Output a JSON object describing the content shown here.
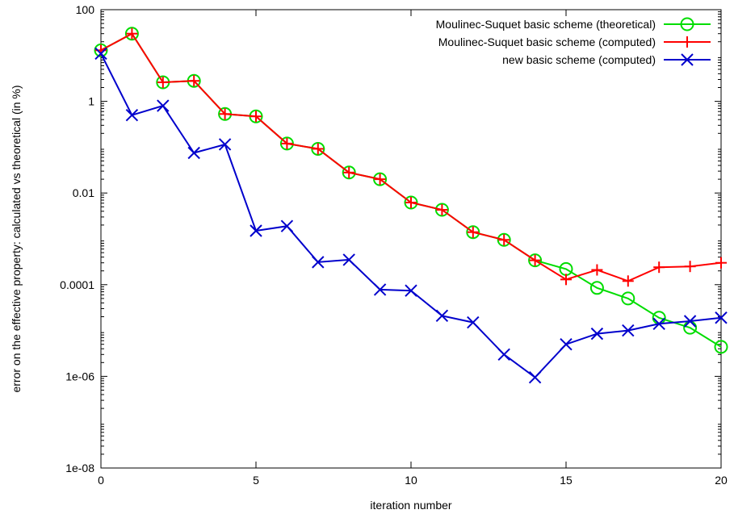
{
  "chart_data": {
    "type": "line",
    "xlabel": "iteration number",
    "ylabel": "error on the effective property: calculated vs theoretical (in %)",
    "xlim": [
      0,
      20
    ],
    "ylim": [
      1e-08,
      100
    ],
    "yscale": "log",
    "x_ticks": [
      0,
      5,
      10,
      15,
      20
    ],
    "x_tick_labels": [
      "0",
      "5",
      "10",
      "15",
      "20"
    ],
    "y_ticks": [
      1e-08,
      1e-06,
      0.0001,
      0.01,
      1,
      100
    ],
    "y_tick_labels": [
      "1e-08",
      "1e-06",
      "0.0001",
      "0.01",
      "1",
      "100"
    ],
    "grid": false,
    "legend_position": "top-right",
    "x": [
      0,
      1,
      2,
      3,
      4,
      5,
      6,
      7,
      8,
      9,
      10,
      11,
      12,
      13,
      14,
      15,
      16,
      17,
      18,
      19,
      20
    ],
    "series": [
      {
        "name": "Moulinec-Suquet basic scheme (theoretical)",
        "color": "#00dd00",
        "marker": "circle",
        "values": [
          13,
          30,
          2.6,
          2.8,
          0.53,
          0.47,
          0.12,
          0.092,
          0.028,
          0.02,
          0.0062,
          0.0043,
          0.0014,
          0.00095,
          0.00034,
          0.00022,
          8.5e-05,
          5e-05,
          1.9e-05,
          1.15e-05,
          4.4e-06
        ]
      },
      {
        "name": "Moulinec-Suquet basic scheme (computed)",
        "color": "#ff0000",
        "marker": "plus",
        "values": [
          13,
          30,
          2.6,
          2.8,
          0.53,
          0.47,
          0.12,
          0.092,
          0.028,
          0.02,
          0.0062,
          0.0043,
          0.0014,
          0.00095,
          0.00034,
          0.00013,
          0.00021,
          0.00012,
          0.00024,
          0.00025,
          0.0003
        ]
      },
      {
        "name": "new basic scheme (computed)",
        "color": "#0000cc",
        "marker": "cross",
        "values": [
          11,
          0.5,
          0.8,
          0.075,
          0.115,
          0.0015,
          0.0019,
          0.00031,
          0.00035,
          7.8e-05,
          7.4e-05,
          2.1e-05,
          1.5e-05,
          3e-06,
          9.5e-07,
          5e-06,
          8.5e-06,
          1e-05,
          1.4e-05,
          1.6e-05,
          1.9e-05
        ]
      }
    ]
  }
}
